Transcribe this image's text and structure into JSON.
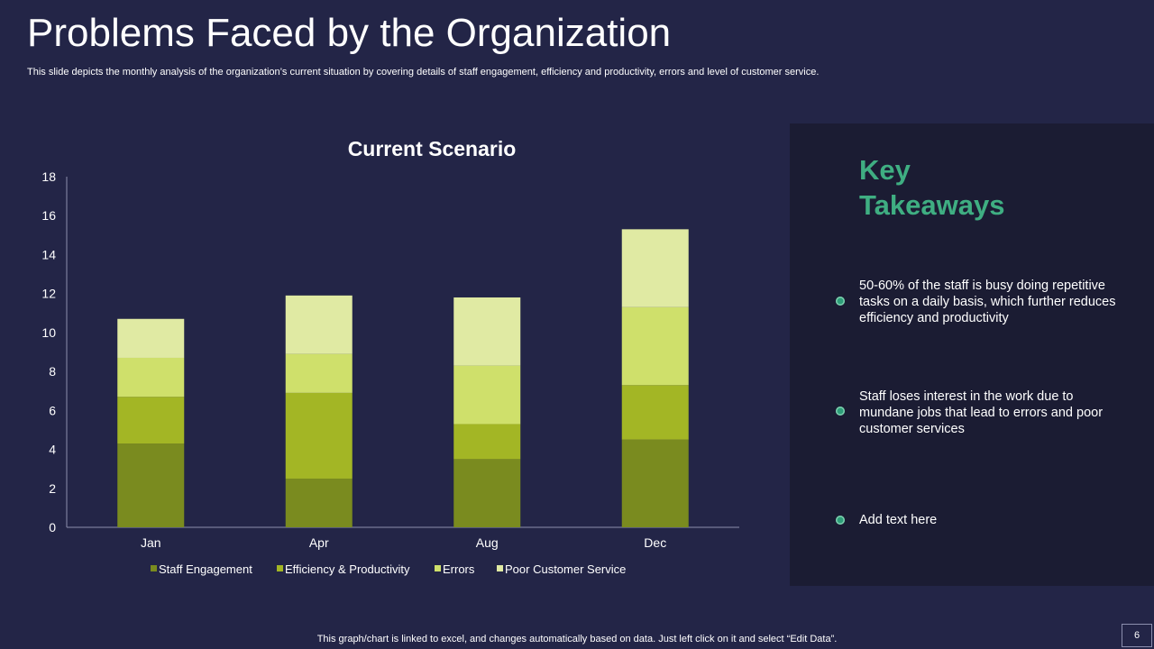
{
  "page": {
    "title": "Problems Faced by the Organization",
    "subtitle": "This slide depicts the monthly analysis of the organization’s current situation by covering details of staff engagement, efficiency and productivity,  errors and level of customer service.",
    "footer_note": "This graph/chart is linked to excel,  and changes automatically based on data. Just left click on it and select “Edit Data”.",
    "page_number": "6"
  },
  "chart_data": {
    "type": "bar",
    "stacked": true,
    "title": "Current Scenario",
    "categories": [
      "Jan",
      "Apr",
      "Aug",
      "Dec"
    ],
    "ylim": [
      0,
      18
    ],
    "yticks": [
      0,
      2,
      4,
      6,
      8,
      10,
      12,
      14,
      16,
      18
    ],
    "grid": false,
    "legend_position": "bottom",
    "series": [
      {
        "name": "Staff Engagement",
        "color": "#7a8b1f",
        "values": [
          4.3,
          2.5,
          3.5,
          4.5
        ]
      },
      {
        "name": "Efficiency & Productivity",
        "color": "#a3b625",
        "values": [
          2.4,
          4.4,
          1.8,
          2.8
        ]
      },
      {
        "name": "Errors",
        "color": "#cfe06b",
        "values": [
          2.0,
          2.0,
          3.0,
          4.0
        ]
      },
      {
        "name": "Poor Customer Service",
        "color": "#e0eaa3",
        "values": [
          2.0,
          3.0,
          3.5,
          4.0
        ]
      }
    ]
  },
  "takeaways": {
    "title_line1": "Key",
    "title_line2": "Takeaways",
    "accent_color": "#3fae82",
    "items": [
      "50-60% of the staff is busy doing repetitive tasks on a daily basis, which further reduces efficiency and productivity",
      "Staff loses interest in the work due to mundane jobs that lead to errors and poor customer services",
      "Add text here"
    ]
  }
}
